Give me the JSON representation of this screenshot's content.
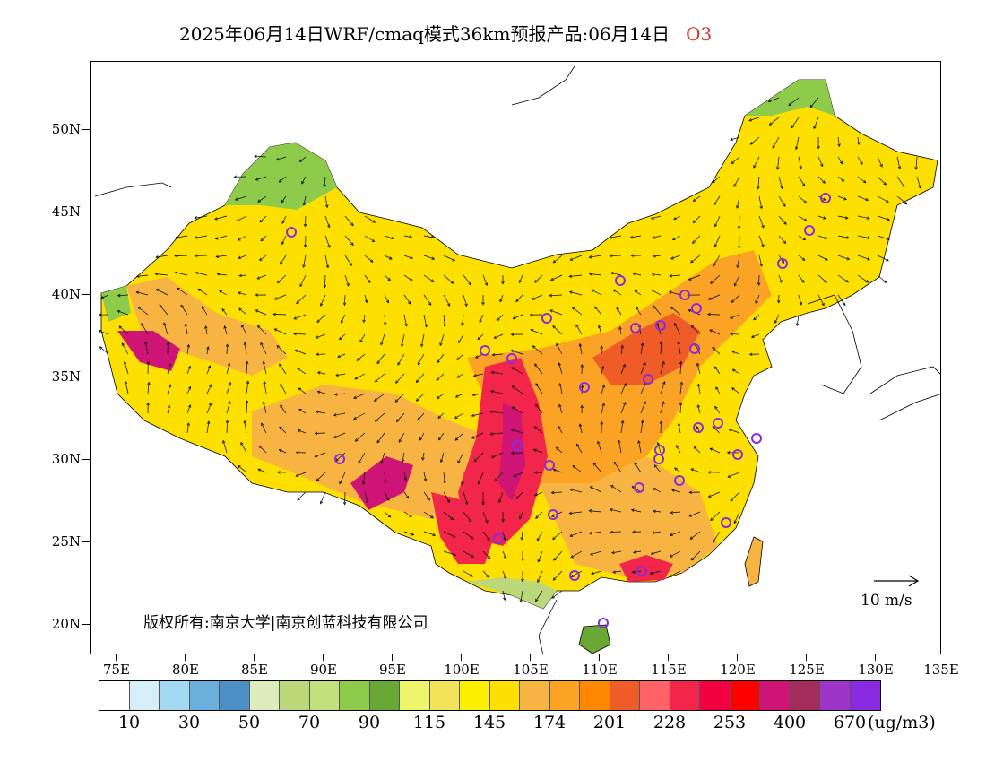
{
  "header": {
    "title": "2025年06月14日WRF/cmaq模式36km预报产品:06月14日",
    "pollutant": "O3",
    "pollutant_color": "#e03030"
  },
  "map": {
    "lat_labels": [
      "50N",
      "45N",
      "40N",
      "35N",
      "30N",
      "25N",
      "20N"
    ],
    "lon_labels": [
      "75E",
      "80E",
      "85E",
      "90E",
      "95E",
      "100E",
      "105E",
      "110E",
      "115E",
      "120E",
      "125E",
      "130E",
      "135E"
    ],
    "copyright": "版权所有:南京大学|南京创蓝科技有限公司",
    "wind_reference": "10 m/s"
  },
  "legend": {
    "colors": [
      "#ffffff",
      "#d6eef8",
      "#a3d8f2",
      "#6aafde",
      "#4b8fc4",
      "#dcecbc",
      "#bcd87a",
      "#c2e07c",
      "#8ecb4a",
      "#6aa836",
      "#eef56a",
      "#f2e35a",
      "#fdef00",
      "#fde000",
      "#f7b442",
      "#fba324",
      "#fd8800",
      "#ef5c28",
      "#ff6367",
      "#f2264a",
      "#f20041",
      "#ff0000",
      "#ce1474",
      "#a32c5c",
      "#9e34c8",
      "#8a2be2"
    ],
    "labels": [
      "10",
      "30",
      "50",
      "70",
      "90",
      "115",
      "145",
      "174",
      "201",
      "228",
      "253",
      "400",
      "670"
    ],
    "unit": "(ug/m3)"
  }
}
